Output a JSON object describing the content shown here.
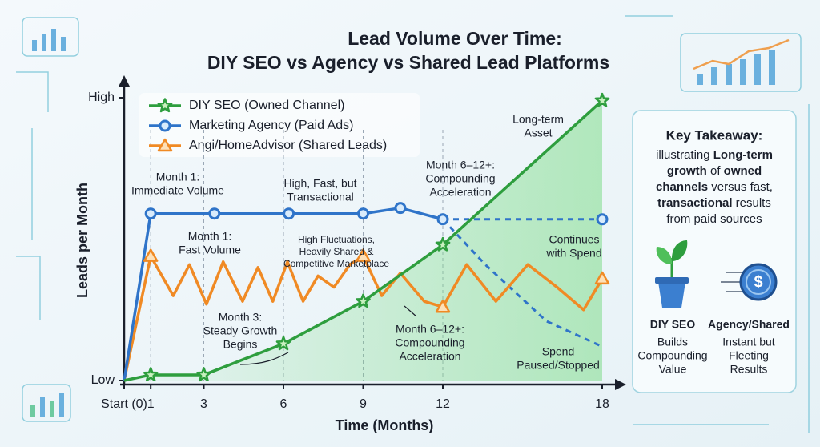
{
  "chart_data": {
    "type": "line",
    "title": "Lead Volume Over Time:",
    "subtitle": "DIY SEO vs Agency vs Shared Lead Platforms",
    "xlabel": "Time (Months)",
    "ylabel": "Leads per Month",
    "xlim": [
      0,
      18
    ],
    "xticks": [
      {
        "value": 0,
        "label": "Start (0)"
      },
      1,
      3,
      6,
      9,
      12,
      18
    ],
    "ylim": [
      0,
      100
    ],
    "yticks": [
      {
        "value": 0,
        "label": "Low"
      },
      {
        "value": 100,
        "label": "High"
      }
    ],
    "grid": true,
    "legend": "top-left",
    "series": [
      {
        "name": "DIY SEO (Owned Channel)",
        "color": "#2e9e3e",
        "marker": "star",
        "x": [
          0,
          1,
          3,
          6,
          9,
          12,
          18
        ],
        "values": [
          0,
          2,
          2,
          13,
          28,
          48,
          99
        ]
      },
      {
        "name": "Marketing Agency (Paid Ads)",
        "color": "#2f74c9",
        "marker": "circle",
        "x": [
          0,
          1,
          3.4,
          6.2,
          9,
          10.4,
          12
        ],
        "values": [
          0,
          59,
          59,
          59,
          59,
          61,
          57
        ]
      },
      {
        "name": "Angi/HomeAdvisor (Shared Leads)",
        "color": "#f08a24",
        "marker": "triangle",
        "x": [
          0,
          1,
          1.85,
          2.46,
          3.1,
          3.73,
          4.46,
          5.04,
          5.6,
          6.15,
          6.74,
          7.3,
          7.9,
          8.5,
          9,
          9.7,
          10.4,
          11.3,
          12,
          12.9,
          14,
          15.2,
          16.3,
          17.3,
          18
        ],
        "values": [
          0,
          44,
          30,
          41,
          27,
          42,
          28,
          40,
          28,
          42,
          28,
          37,
          33,
          41,
          44,
          30,
          38,
          28,
          26,
          41,
          28,
          41,
          33,
          25,
          36
        ]
      }
    ],
    "projections": [
      {
        "color": "#2f74c9",
        "x": [
          12,
          18
        ],
        "values": [
          57,
          57
        ]
      },
      {
        "color": "#2f74c9",
        "x": [
          12,
          13.6,
          15.9,
          18
        ],
        "values": [
          57,
          41,
          21,
          12
        ]
      }
    ],
    "annotations": [
      [
        "Month 1:",
        "Immediate Volume"
      ],
      [
        "High, Fast, but",
        "Transactional"
      ],
      [
        "Month 6–12+:",
        "Compounding",
        "Acceleration"
      ],
      [
        "Long-term",
        "Asset"
      ],
      [
        "Month 1:",
        "Fast Volume"
      ],
      [
        "High Fluctuations,",
        "Heavily Shared &",
        "Competitive Marketplace"
      ],
      [
        "Continues",
        "with Spend"
      ],
      [
        "Month 3:",
        "Steady Growth",
        "Begins"
      ],
      [
        "Month 6–12+:",
        "Compounding",
        "Acceleration"
      ],
      [
        "Spend",
        "Paused/Stopped"
      ]
    ]
  },
  "panel": {
    "title": "Key Takeaway:",
    "lines": [
      [
        {
          "t": "illustrating ",
          "b": false
        },
        {
          "t": "Long-term",
          "b": true
        }
      ],
      [
        {
          "t": "growth",
          "b": true
        },
        {
          "t": " of ",
          "b": false
        },
        {
          "t": "owned",
          "b": true
        }
      ],
      [
        {
          "t": "channels",
          "b": true
        },
        {
          "t": " versus fast,",
          "b": false
        }
      ],
      [
        {
          "t": "transactional",
          "b": true
        },
        {
          "t": " results",
          "b": false
        }
      ],
      [
        {
          "t": "from paid sources",
          "b": false
        }
      ]
    ],
    "items": [
      {
        "label": "DIY SEO",
        "desc": [
          "Builds",
          "Compounding",
          "Value"
        ]
      },
      {
        "label": "Agency/Shared",
        "desc": [
          "Instant but",
          "Fleeting",
          "Results"
        ]
      }
    ]
  }
}
